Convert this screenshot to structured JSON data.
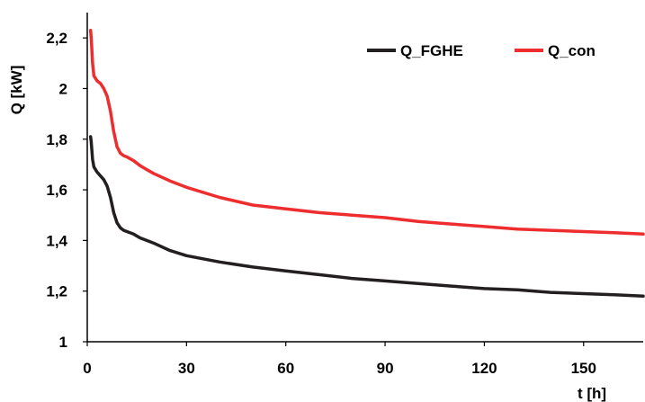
{
  "chart_data": {
    "type": "line",
    "title": "",
    "xlabel": "t [h]",
    "ylabel": "Q [kW]",
    "xlim": [
      0,
      168
    ],
    "ylim": [
      1,
      2.3
    ],
    "x_ticks": [
      0,
      30,
      60,
      90,
      120,
      150
    ],
    "x_tick_labels": [
      "0",
      "30",
      "60",
      "90",
      "120",
      "150"
    ],
    "y_ticks": [
      1,
      1.2,
      1.4,
      1.6,
      1.8,
      2,
      2.2
    ],
    "y_tick_labels": [
      "1",
      "1,2",
      "1,4",
      "1,6",
      "1,8",
      "2",
      "2,2"
    ],
    "grid": false,
    "legend_position": "top-right",
    "series": [
      {
        "name": "Q_FGHE",
        "color": "#231f20",
        "x": [
          1,
          1.2,
          1.6,
          2,
          3,
          4,
          5,
          6,
          7,
          8,
          9,
          10,
          11,
          12,
          14,
          16,
          18,
          20,
          25,
          30,
          40,
          50,
          60,
          70,
          80,
          90,
          100,
          110,
          120,
          130,
          140,
          150,
          160,
          168
        ],
        "y": [
          1.81,
          1.79,
          1.72,
          1.69,
          1.67,
          1.655,
          1.64,
          1.615,
          1.57,
          1.51,
          1.47,
          1.45,
          1.44,
          1.435,
          1.425,
          1.41,
          1.4,
          1.39,
          1.36,
          1.34,
          1.315,
          1.295,
          1.28,
          1.265,
          1.25,
          1.24,
          1.23,
          1.22,
          1.21,
          1.205,
          1.195,
          1.19,
          1.185,
          1.18
        ]
      },
      {
        "name": "Q_con",
        "color": "#ee2d2f",
        "x": [
          1,
          1.2,
          1.6,
          2,
          3,
          4,
          5,
          6,
          7,
          8,
          9,
          10,
          11,
          12,
          14,
          16,
          18,
          20,
          25,
          30,
          40,
          50,
          60,
          70,
          80,
          90,
          100,
          110,
          120,
          130,
          140,
          150,
          160,
          168
        ],
        "y": [
          2.23,
          2.2,
          2.1,
          2.05,
          2.03,
          2.02,
          2.0,
          1.97,
          1.91,
          1.83,
          1.77,
          1.745,
          1.735,
          1.73,
          1.715,
          1.695,
          1.68,
          1.665,
          1.635,
          1.61,
          1.57,
          1.54,
          1.525,
          1.51,
          1.5,
          1.49,
          1.475,
          1.465,
          1.455,
          1.445,
          1.44,
          1.435,
          1.43,
          1.425
        ]
      }
    ]
  }
}
